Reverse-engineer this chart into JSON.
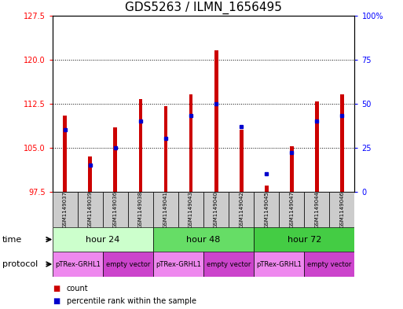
{
  "title": "GDS5263 / ILMN_1656495",
  "samples": [
    "GSM1149037",
    "GSM1149039",
    "GSM1149036",
    "GSM1149038",
    "GSM1149041",
    "GSM1149043",
    "GSM1149040",
    "GSM1149042",
    "GSM1149045",
    "GSM1149047",
    "GSM1149044",
    "GSM1149046"
  ],
  "count_values": [
    110.5,
    103.5,
    108.5,
    113.2,
    112.0,
    114.0,
    121.5,
    108.0,
    98.5,
    105.2,
    112.8,
    114.0
  ],
  "count_base": 97.5,
  "percentile_values": [
    35,
    15,
    25,
    40,
    30,
    43,
    50,
    37,
    10,
    22,
    40,
    43
  ],
  "ylim_left": [
    97.5,
    127.5
  ],
  "ylim_right": [
    0,
    100
  ],
  "yticks_left": [
    97.5,
    105,
    112.5,
    120,
    127.5
  ],
  "yticks_right": [
    0,
    25,
    50,
    75,
    100
  ],
  "time_groups": [
    {
      "label": "hour 24",
      "start": 0,
      "end": 4,
      "color": "#ccffcc"
    },
    {
      "label": "hour 48",
      "start": 4,
      "end": 8,
      "color": "#66dd66"
    },
    {
      "label": "hour 72",
      "start": 8,
      "end": 12,
      "color": "#44cc44"
    }
  ],
  "protocol_groups": [
    {
      "label": "pTRex-GRHL1",
      "start": 0,
      "end": 2,
      "color": "#ee88ee"
    },
    {
      "label": "empty vector",
      "start": 2,
      "end": 4,
      "color": "#cc44cc"
    },
    {
      "label": "pTRex-GRHL1",
      "start": 4,
      "end": 6,
      "color": "#ee88ee"
    },
    {
      "label": "empty vector",
      "start": 6,
      "end": 8,
      "color": "#cc44cc"
    },
    {
      "label": "pTRex-GRHL1",
      "start": 8,
      "end": 10,
      "color": "#ee88ee"
    },
    {
      "label": "empty vector",
      "start": 10,
      "end": 12,
      "color": "#cc44cc"
    }
  ],
  "bar_color": "#cc0000",
  "dot_color": "#0000cc",
  "sample_bg_color": "#cccccc",
  "title_fontsize": 11,
  "tick_fontsize": 7,
  "label_fontsize": 8,
  "bar_width": 0.15
}
